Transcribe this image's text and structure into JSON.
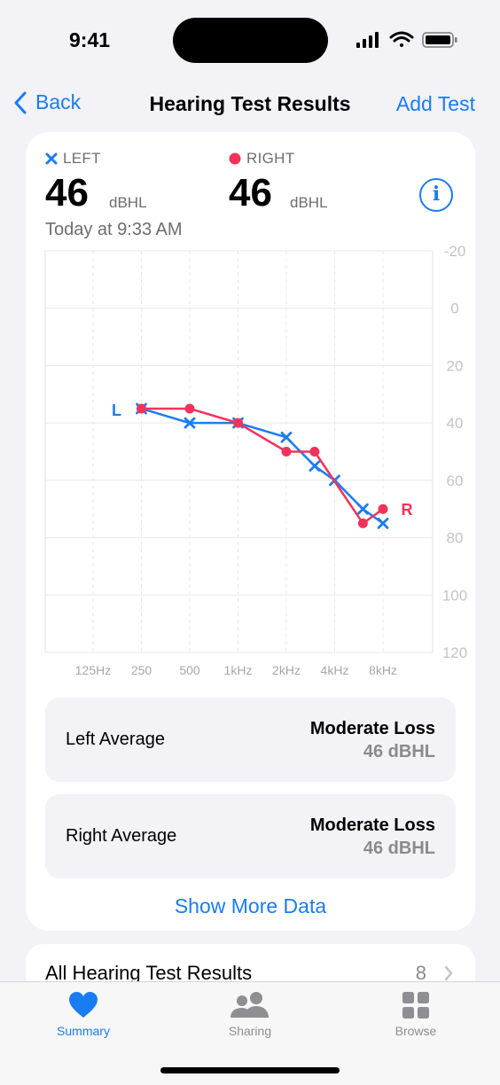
{
  "status_bar": {
    "time": "9:41"
  },
  "nav": {
    "back_label": "Back",
    "title": "Hearing Test Results",
    "add_label": "Add Test"
  },
  "summary": {
    "left": {
      "label": "LEFT",
      "value": "46",
      "unit": "dBHL"
    },
    "right": {
      "label": "RIGHT",
      "value": "46",
      "unit": "dBHL"
    },
    "date": "Today at 9:33 AM"
  },
  "chart_data": {
    "type": "line",
    "x_tick_labels": [
      "125Hz",
      "250",
      "500",
      "1kHz",
      "2kHz",
      "4kHz",
      "8kHz"
    ],
    "y_tick_labels": [
      "-20",
      "0",
      "20",
      "40",
      "60",
      "80",
      "100",
      "120"
    ],
    "ylim": [
      -20,
      120
    ],
    "y_inverted": true,
    "grid": true,
    "series": [
      {
        "name": "L",
        "marker": "x",
        "color": "#1a7cf2",
        "points": [
          [
            250,
            35
          ],
          [
            500,
            40
          ],
          [
            1000,
            40
          ],
          [
            2000,
            45
          ],
          [
            3000,
            55
          ],
          [
            4000,
            60
          ],
          [
            6000,
            70
          ],
          [
            8000,
            75
          ]
        ]
      },
      {
        "name": "R",
        "marker": "dot",
        "color": "#f2325a",
        "points": [
          [
            250,
            35
          ],
          [
            500,
            35
          ],
          [
            1000,
            40
          ],
          [
            2000,
            50
          ],
          [
            3000,
            50
          ],
          [
            6000,
            75
          ],
          [
            8000,
            70
          ]
        ]
      }
    ]
  },
  "averages": {
    "left": {
      "label": "Left Average",
      "status": "Moderate Loss",
      "value": "46 dBHL"
    },
    "right": {
      "label": "Right Average",
      "status": "Moderate Loss",
      "value": "46 dBHL"
    }
  },
  "show_more_label": "Show More Data",
  "all_results": {
    "label": "All Hearing Test Results",
    "count": "8"
  },
  "tabs": [
    {
      "label": "Summary",
      "icon": "heart-icon",
      "active": true
    },
    {
      "label": "Sharing",
      "icon": "people-icon",
      "active": false
    },
    {
      "label": "Browse",
      "icon": "grid-icon",
      "active": false
    }
  ],
  "colors": {
    "accent": "#1a7cf2",
    "left": "#1a7cf2",
    "right": "#f2325a"
  }
}
